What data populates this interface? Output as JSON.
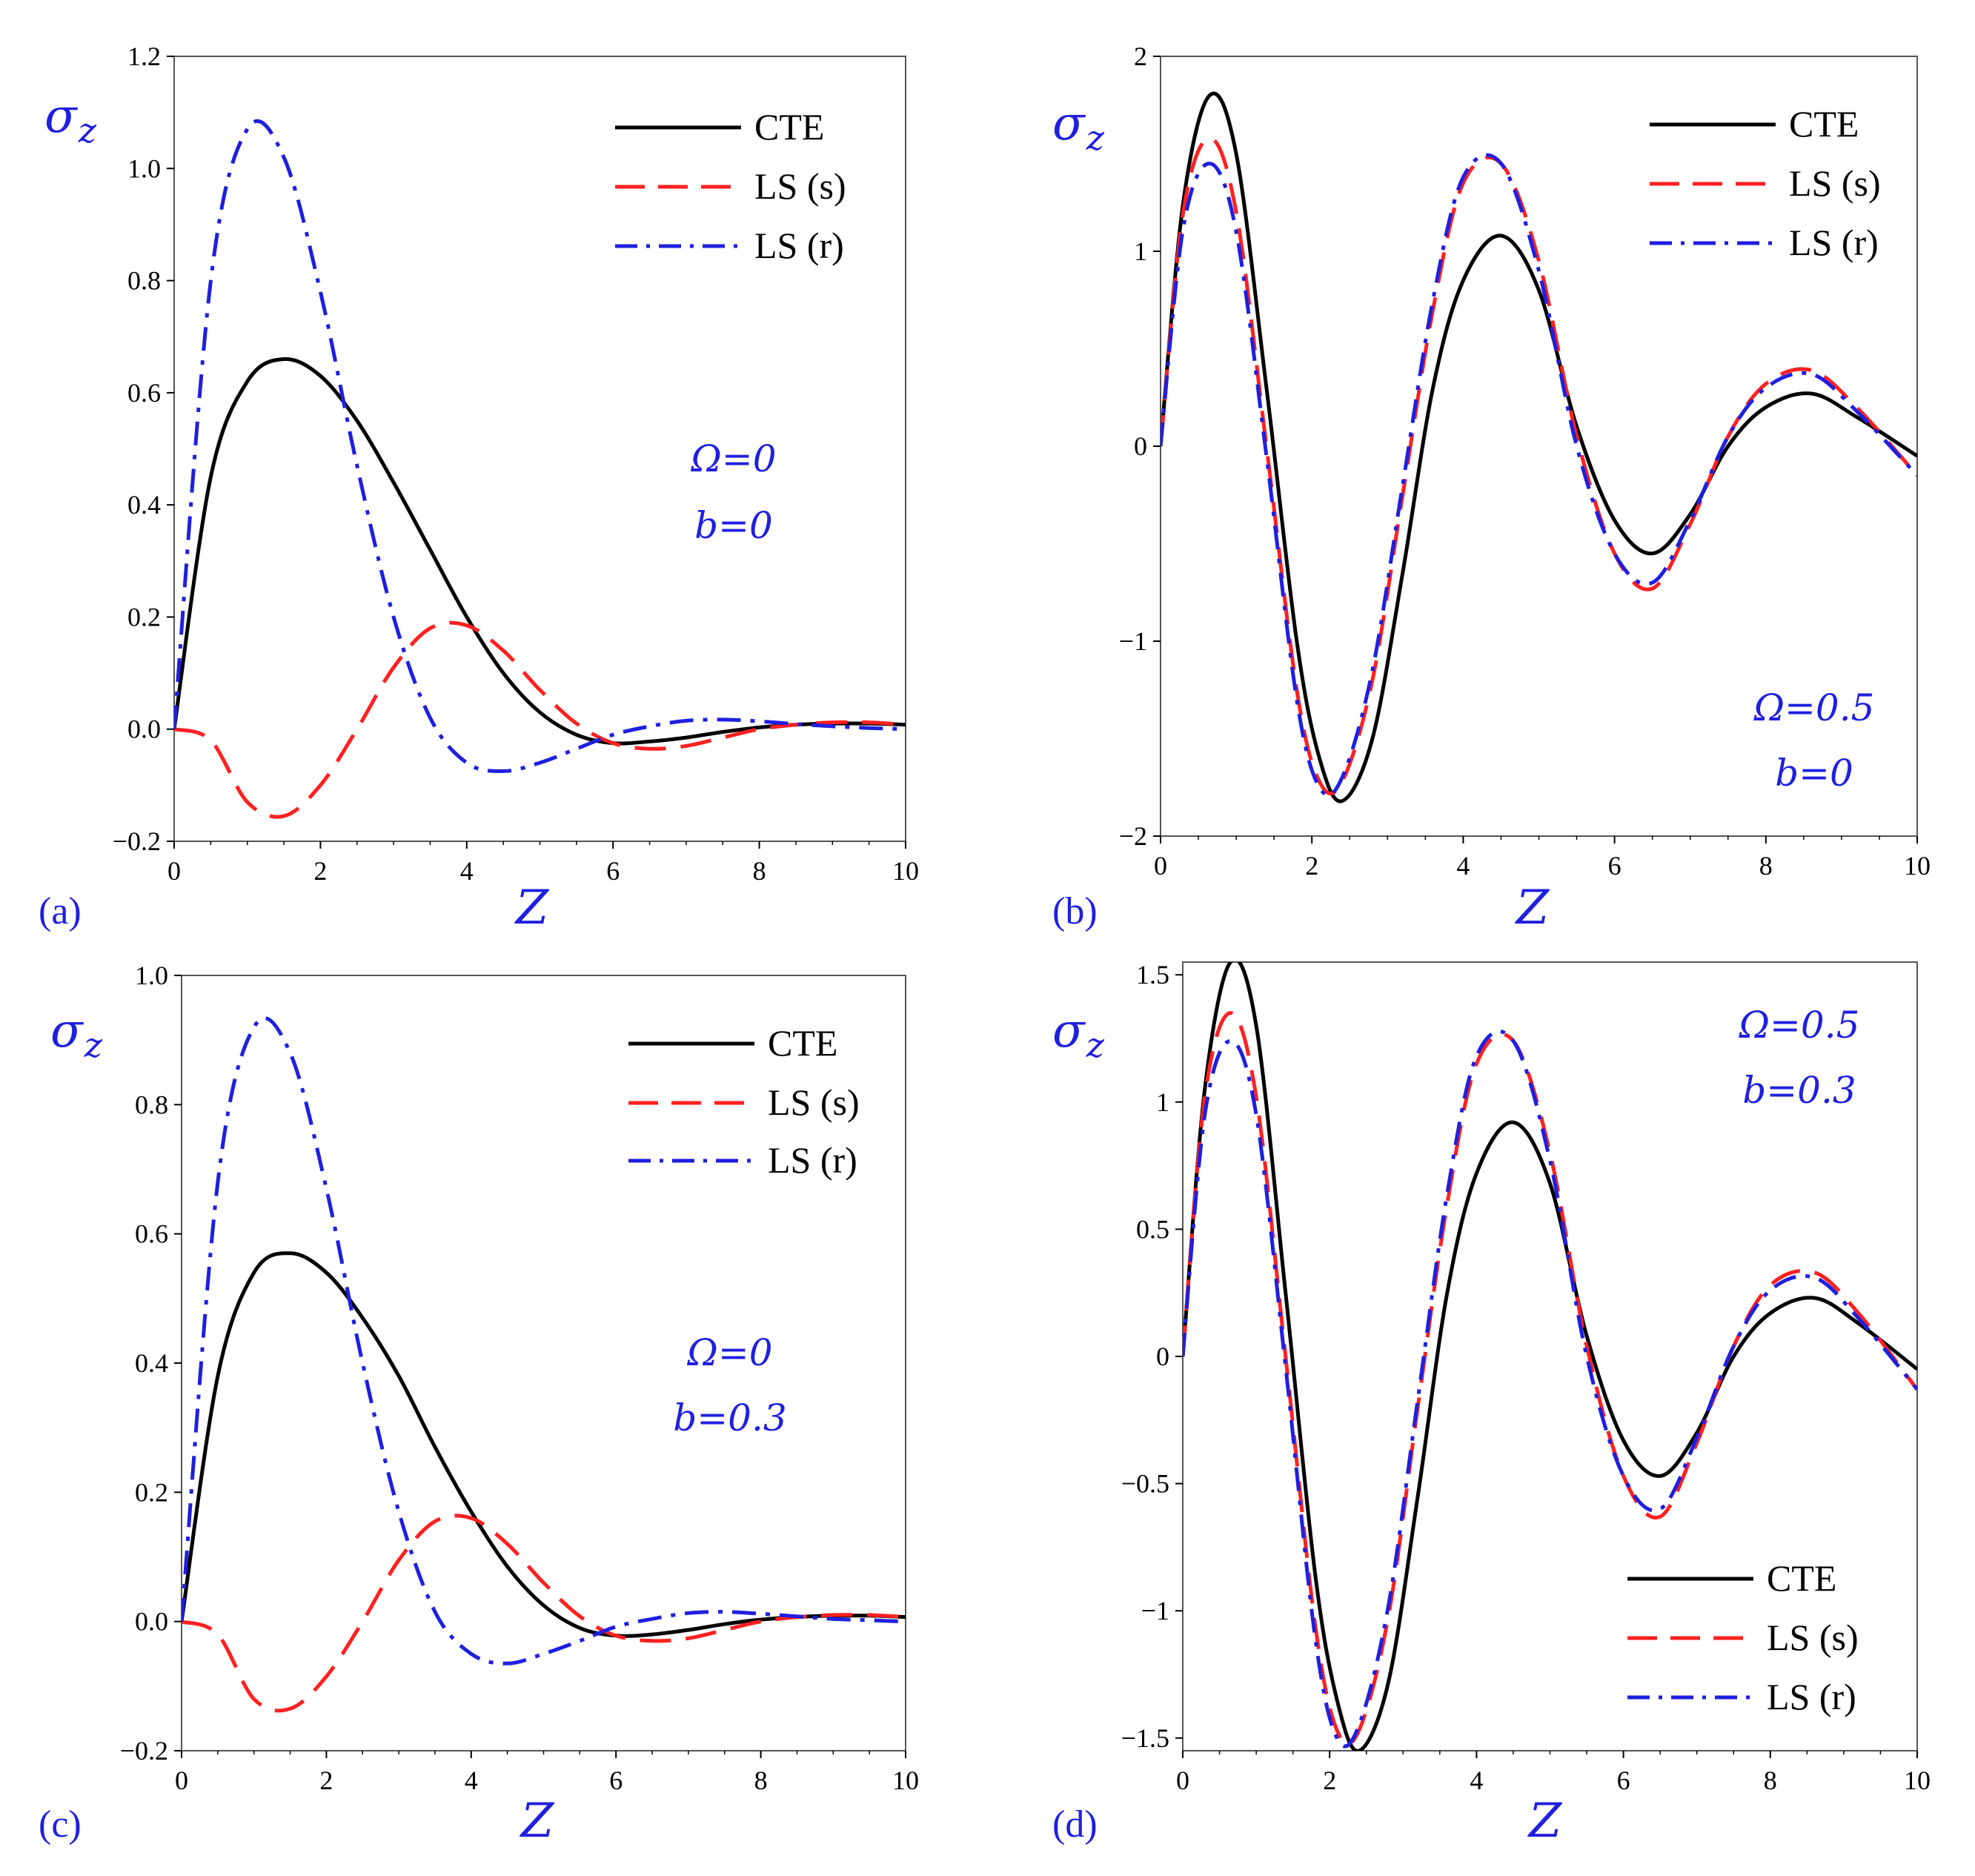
{
  "figure": {
    "background": "#ffffff"
  },
  "chart_data": [
    {
      "panel": "(a)",
      "type": "line",
      "xlabel": "Z",
      "ylabel": "σz",
      "xlim": [
        0,
        10
      ],
      "ylim": [
        -0.2,
        1.2
      ],
      "xticks": [
        "0",
        "2",
        "4",
        "6",
        "8",
        "10"
      ],
      "yticks": [
        "−0.2",
        "0.0",
        "0.2",
        "0.4",
        "0.6",
        "0.8",
        "1.0",
        "1.2"
      ],
      "yticks_values": [
        -0.2,
        0.0,
        0.2,
        0.4,
        0.6,
        0.8,
        1.0,
        1.2
      ],
      "xticks_values": [
        0,
        2,
        4,
        6,
        8,
        10
      ],
      "annotations": [
        "Ω=0",
        "b=0"
      ],
      "legend": [
        "CTE",
        "LS (s)",
        "LS (r)"
      ],
      "x": [
        0,
        0.5,
        1,
        1.5,
        2,
        2.5,
        3,
        3.5,
        4,
        4.5,
        5,
        5.5,
        6,
        6.5,
        7,
        7.5,
        8,
        8.5,
        9,
        9.5,
        10
      ],
      "series": [
        {
          "name": "CTE",
          "color": "#000000",
          "style": "solid",
          "values": [
            0,
            0.45,
            0.62,
            0.66,
            0.63,
            0.55,
            0.44,
            0.32,
            0.2,
            0.1,
            0.03,
            -0.01,
            -0.025,
            -0.022,
            -0.015,
            -0.005,
            0.003,
            0.008,
            0.01,
            0.01,
            0.008
          ]
        },
        {
          "name": "LS (s)",
          "color": "#ff2020",
          "style": "dashed",
          "values": [
            0,
            -0.02,
            -0.13,
            -0.155,
            -0.1,
            0.0,
            0.11,
            0.18,
            0.185,
            0.14,
            0.07,
            0.01,
            -0.025,
            -0.035,
            -0.03,
            -0.015,
            0.0,
            0.008,
            0.012,
            0.012,
            0.008
          ]
        },
        {
          "name": "LS (r)",
          "color": "#1f1fe0",
          "style": "dashdot",
          "values": [
            0,
            0.8,
            1.07,
            1.02,
            0.78,
            0.47,
            0.2,
            0.02,
            -0.06,
            -0.075,
            -0.06,
            -0.035,
            -0.01,
            0.005,
            0.015,
            0.017,
            0.014,
            0.009,
            0.005,
            0.002,
            0.0
          ]
        }
      ]
    },
    {
      "panel": "(b)",
      "type": "line",
      "xlabel": "Z",
      "ylabel": "σz",
      "xlim": [
        0,
        10
      ],
      "ylim": [
        -2,
        2
      ],
      "xticks": [
        "0",
        "2",
        "4",
        "6",
        "8",
        "10"
      ],
      "yticks": [
        "−2",
        "−1",
        "0",
        "1",
        "2"
      ],
      "yticks_values": [
        -2,
        -1,
        0,
        1,
        2
      ],
      "xticks_values": [
        0,
        2,
        4,
        6,
        8,
        10
      ],
      "annotations": [
        "Ω=0.5",
        "b=0"
      ],
      "legend": [
        "CTE",
        "LS (s)",
        "LS (r)"
      ],
      "x": [
        0,
        0.3,
        0.65,
        1,
        1.4,
        1.8,
        2.1,
        2.4,
        2.8,
        3.2,
        3.6,
        4.0,
        4.5,
        5.0,
        5.5,
        6.0,
        6.5,
        7.0,
        7.5,
        8.0,
        8.6,
        9.2,
        10
      ],
      "series": [
        {
          "name": "CTE",
          "color": "#000000",
          "style": "solid",
          "values": [
            0,
            1.25,
            1.8,
            1.5,
            0.3,
            -1.0,
            -1.6,
            -1.82,
            -1.5,
            -0.65,
            0.3,
            0.85,
            1.08,
            0.8,
            0.1,
            -0.38,
            -0.55,
            -0.35,
            0.0,
            0.2,
            0.27,
            0.15,
            -0.05
          ]
        },
        {
          "name": "LS (s)",
          "color": "#ff2020",
          "style": "dashed",
          "values": [
            0,
            1.2,
            1.58,
            1.2,
            0.0,
            -1.25,
            -1.72,
            -1.72,
            -1.2,
            -0.25,
            0.7,
            1.35,
            1.45,
            0.95,
            0.05,
            -0.55,
            -0.73,
            -0.4,
            0.05,
            0.32,
            0.39,
            0.2,
            -0.15
          ]
        },
        {
          "name": "LS (r)",
          "color": "#1f1fe0",
          "style": "dashdot",
          "values": [
            0,
            1.12,
            1.45,
            1.1,
            -0.05,
            -1.3,
            -1.75,
            -1.7,
            -1.15,
            -0.2,
            0.75,
            1.38,
            1.45,
            0.9,
            0.0,
            -0.55,
            -0.7,
            -0.38,
            0.05,
            0.3,
            0.37,
            0.18,
            -0.15
          ]
        }
      ]
    },
    {
      "panel": "(c)",
      "type": "line",
      "xlabel": "Z",
      "ylabel": "σz",
      "xlim": [
        0,
        10
      ],
      "ylim": [
        -0.2,
        1.0
      ],
      "xticks": [
        "0",
        "2",
        "4",
        "6",
        "8",
        "10"
      ],
      "yticks": [
        "−0.2",
        "0.0",
        "0.2",
        "0.4",
        "0.6",
        "0.8",
        "1.0"
      ],
      "yticks_values": [
        -0.2,
        0.0,
        0.2,
        0.4,
        0.6,
        0.8,
        1.0
      ],
      "xticks_values": [
        0,
        2,
        4,
        6,
        8,
        10
      ],
      "annotations": [
        "Ω=0",
        "b=0.3"
      ],
      "legend": [
        "CTE",
        "LS (s)",
        "LS (r)"
      ],
      "x": [
        0,
        0.5,
        1,
        1.5,
        2,
        2.5,
        3,
        3.5,
        4,
        4.5,
        5,
        5.5,
        6,
        6.5,
        7,
        7.5,
        8,
        8.5,
        9,
        9.5,
        10
      ],
      "series": [
        {
          "name": "CTE",
          "color": "#000000",
          "style": "solid",
          "values": [
            0,
            0.38,
            0.54,
            0.57,
            0.54,
            0.47,
            0.38,
            0.27,
            0.17,
            0.085,
            0.025,
            -0.01,
            -0.022,
            -0.02,
            -0.013,
            -0.004,
            0.003,
            0.007,
            0.009,
            0.009,
            0.007
          ]
        },
        {
          "name": "LS (s)",
          "color": "#ff2020",
          "style": "dashed",
          "values": [
            0,
            -0.02,
            -0.12,
            -0.135,
            -0.085,
            0.0,
            0.095,
            0.155,
            0.16,
            0.12,
            0.06,
            0.008,
            -0.022,
            -0.03,
            -0.026,
            -0.013,
            0.0,
            0.007,
            0.01,
            0.01,
            0.007
          ]
        },
        {
          "name": "LS (r)",
          "color": "#1f1fe0",
          "style": "dashdot",
          "values": [
            0,
            0.68,
            0.92,
            0.88,
            0.67,
            0.4,
            0.17,
            0.015,
            -0.05,
            -0.065,
            -0.05,
            -0.03,
            -0.008,
            0.004,
            0.013,
            0.015,
            0.012,
            0.008,
            0.004,
            0.002,
            0.0
          ]
        }
      ]
    },
    {
      "panel": "(d)",
      "type": "line",
      "xlabel": "Z",
      "ylabel": "σz",
      "xlim": [
        0,
        10
      ],
      "ylim": [
        -1.55,
        1.55
      ],
      "xticks": [
        "0",
        "2",
        "4",
        "6",
        "8",
        "10"
      ],
      "yticks": [
        "−1.5",
        "−1",
        "−0.5",
        "0",
        "0.5",
        "1",
        "1.5"
      ],
      "yticks_values": [
        -1.5,
        -1,
        -0.5,
        0,
        0.5,
        1,
        1.5
      ],
      "xticks_values": [
        0,
        2,
        4,
        6,
        8,
        10
      ],
      "annotations": [
        "Ω=0.5",
        "b=0.3"
      ],
      "legend": [
        "CTE",
        "LS (s)",
        "LS (r)"
      ],
      "x": [
        0,
        0.3,
        0.65,
        1,
        1.4,
        1.8,
        2.1,
        2.4,
        2.8,
        3.2,
        3.6,
        4.0,
        4.5,
        5.0,
        5.5,
        6.0,
        6.5,
        7.0,
        7.5,
        8.0,
        8.6,
        9.2,
        10
      ],
      "series": [
        {
          "name": "CTE",
          "color": "#000000",
          "style": "solid",
          "values": [
            0,
            1.05,
            1.55,
            1.3,
            0.25,
            -0.85,
            -1.35,
            -1.55,
            -1.28,
            -0.55,
            0.25,
            0.72,
            0.92,
            0.68,
            0.08,
            -0.33,
            -0.47,
            -0.3,
            0.0,
            0.17,
            0.23,
            0.13,
            -0.05
          ]
        },
        {
          "name": "LS (s)",
          "color": "#ff2020",
          "style": "dashed",
          "values": [
            0,
            1.02,
            1.35,
            1.02,
            0.0,
            -1.05,
            -1.47,
            -1.47,
            -1.02,
            -0.2,
            0.6,
            1.15,
            1.24,
            0.8,
            0.04,
            -0.47,
            -0.63,
            -0.34,
            0.04,
            0.28,
            0.33,
            0.17,
            -0.13
          ]
        },
        {
          "name": "LS (r)",
          "color": "#1f1fe0",
          "style": "dashdot",
          "values": [
            0,
            0.95,
            1.24,
            0.95,
            -0.04,
            -1.1,
            -1.5,
            -1.45,
            -0.98,
            -0.17,
            0.64,
            1.18,
            1.24,
            0.77,
            0.0,
            -0.47,
            -0.6,
            -0.32,
            0.04,
            0.26,
            0.31,
            0.15,
            -0.13
          ]
        }
      ]
    }
  ]
}
